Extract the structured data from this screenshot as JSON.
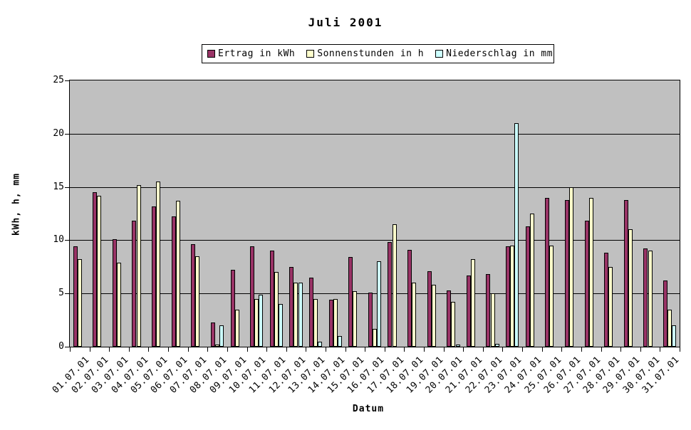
{
  "title": "Juli 2001",
  "chart_data": {
    "type": "bar",
    "title": "Juli 2001",
    "xlabel": "Datum",
    "ylabel": "kWh, h, mm",
    "ylim": [
      0,
      25
    ],
    "ytick_step": 5,
    "grid": true,
    "legend_position": "top-center",
    "plot_background": "#c0c0c0",
    "bar_border_color": "#000000",
    "categories": [
      "01.07.01",
      "02.07.01",
      "03.07.01",
      "04.07.01",
      "05.07.01",
      "06.07.01",
      "07.07.01",
      "08.07.01",
      "09.07.01",
      "10.07.01",
      "11.07.01",
      "12.07.01",
      "13.07.01",
      "14.07.01",
      "15.07.01",
      "16.07.01",
      "17.07.01",
      "18.07.01",
      "19.07.01",
      "20.07.01",
      "21.07.01",
      "22.07.01",
      "23.07.01",
      "24.07.01",
      "25.07.01",
      "26.07.01",
      "27.07.01",
      "28.07.01",
      "29.07.01",
      "30.07.01",
      "31.07.01"
    ],
    "series": [
      {
        "name": "Ertrag in kWh",
        "color": "#993366",
        "values": [
          9.4,
          14.5,
          10.1,
          11.8,
          13.2,
          12.2,
          9.6,
          2.3,
          7.2,
          9.4,
          9.0,
          7.5,
          6.5,
          4.4,
          8.4,
          5.1,
          9.8,
          9.1,
          7.1,
          5.3,
          6.7,
          6.8,
          9.4,
          11.3,
          14.0,
          13.8,
          11.8,
          8.8,
          13.8,
          9.2,
          6.2
        ]
      },
      {
        "name": "Sonnenstunden in h",
        "color": "#ffffcc",
        "values": [
          8.2,
          14.2,
          7.9,
          15.2,
          15.5,
          13.7,
          8.5,
          0.2,
          3.5,
          4.5,
          7.0,
          6.0,
          4.5,
          4.5,
          5.2,
          1.7,
          11.5,
          6.0,
          5.8,
          4.2,
          8.2,
          5.0,
          9.5,
          12.5,
          9.5,
          15.0,
          14.0,
          7.5,
          11.0,
          9.0,
          3.5
        ]
      },
      {
        "name": "Niederschlag in mm",
        "color": "#ccffff",
        "values": [
          0,
          0,
          0,
          0,
          0,
          0,
          0,
          2.0,
          0,
          4.9,
          4.0,
          6.0,
          0.5,
          1.0,
          0,
          8.0,
          0,
          0,
          0,
          0.2,
          0,
          0.3,
          21.0,
          0,
          0,
          0,
          0,
          0,
          0,
          0,
          2.0
        ]
      }
    ]
  }
}
